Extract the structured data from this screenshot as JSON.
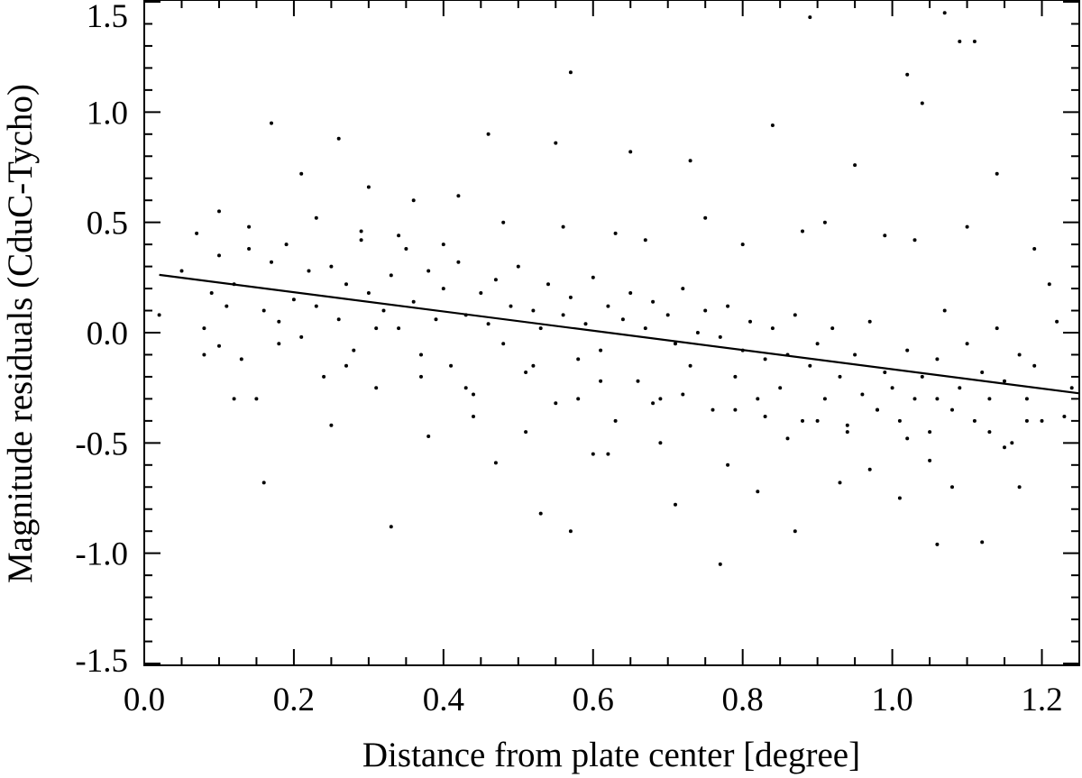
{
  "chart_data": {
    "type": "scatter",
    "title": "",
    "xlabel": "Distance from plate center [degree]",
    "ylabel": "Magnitude residuals (CduC-Tycho)",
    "xlim": [
      0.0,
      1.25
    ],
    "ylim": [
      -1.5,
      1.5
    ],
    "xticks": [
      "0.0",
      "0.2",
      "0.4",
      "0.6",
      "0.8",
      "1.0",
      "1.2"
    ],
    "yticks": [
      "1.5",
      "1.0",
      "0.5",
      "0.0",
      "-0.5",
      "-1.0",
      "-1.5"
    ],
    "grid": false,
    "legend": "none",
    "colors": {
      "points": "#000000",
      "fit_line": "#000000"
    },
    "series": [
      {
        "kind": "points",
        "x": [
          0.02,
          0.05,
          0.07,
          0.08,
          0.09,
          0.1,
          0.1,
          0.11,
          0.12,
          0.13,
          0.14,
          0.15,
          0.16,
          0.17,
          0.18,
          0.19,
          0.2,
          0.21,
          0.22,
          0.23,
          0.24,
          0.25,
          0.26,
          0.27,
          0.28,
          0.29,
          0.3,
          0.31,
          0.32,
          0.33,
          0.34,
          0.35,
          0.36,
          0.37,
          0.38,
          0.39,
          0.4,
          0.41,
          0.42,
          0.43,
          0.44,
          0.45,
          0.46,
          0.47,
          0.48,
          0.49,
          0.5,
          0.51,
          0.52,
          0.53,
          0.54,
          0.55,
          0.56,
          0.57,
          0.58,
          0.59,
          0.6,
          0.61,
          0.62,
          0.63,
          0.64,
          0.65,
          0.66,
          0.67,
          0.68,
          0.69,
          0.7,
          0.71,
          0.72,
          0.73,
          0.74,
          0.75,
          0.76,
          0.77,
          0.78,
          0.79,
          0.8,
          0.81,
          0.82,
          0.83,
          0.84,
          0.85,
          0.86,
          0.87,
          0.88,
          0.89,
          0.9,
          0.91,
          0.92,
          0.93,
          0.94,
          0.95,
          0.96,
          0.97,
          0.98,
          0.99,
          1.0,
          1.01,
          1.02,
          1.03,
          1.04,
          1.05,
          1.06,
          1.07,
          1.08,
          1.09,
          1.1,
          1.11,
          1.12,
          1.13,
          1.14,
          1.15,
          1.16,
          1.17,
          1.18,
          1.19,
          1.2,
          1.22,
          1.24,
          0.1,
          0.17,
          0.16,
          0.33,
          0.47,
          0.57,
          0.57,
          0.77,
          0.87,
          0.89,
          1.02,
          1.07,
          1.09,
          1.11,
          1.06,
          1.12,
          0.3,
          0.26,
          0.21,
          0.36,
          0.42,
          0.46,
          0.55,
          0.65,
          0.73,
          0.84,
          0.95,
          1.04,
          1.14,
          0.53,
          0.62,
          0.71,
          0.82,
          0.93,
          1.01,
          1.08,
          1.17,
          0.12,
          0.25,
          0.38,
          0.44,
          0.51,
          0.6,
          0.69,
          0.78,
          0.86,
          0.97,
          1.05,
          1.15,
          0.14,
          0.23,
          0.29,
          0.34,
          0.4,
          0.48,
          0.56,
          0.63,
          0.67,
          0.75,
          0.8,
          0.88,
          0.91,
          0.99,
          1.03,
          1.1,
          1.19,
          1.21,
          0.08,
          0.18,
          0.27,
          0.31,
          0.37,
          0.43,
          0.52,
          0.58,
          0.61,
          0.68,
          0.72,
          0.79,
          0.83,
          0.9,
          0.94,
          0.98,
          1.02,
          1.06,
          1.13,
          1.18,
          1.23
        ],
        "y": [
          0.08,
          0.28,
          0.45,
          0.02,
          0.18,
          0.35,
          -0.06,
          0.12,
          0.22,
          -0.12,
          0.38,
          -0.3,
          0.1,
          0.32,
          0.05,
          0.4,
          0.15,
          -0.02,
          0.28,
          0.12,
          -0.2,
          0.3,
          0.06,
          0.22,
          -0.08,
          0.42,
          0.18,
          -0.25,
          0.1,
          0.26,
          0.02,
          0.38,
          0.14,
          -0.1,
          0.28,
          0.06,
          0.2,
          -0.15,
          0.32,
          0.08,
          -0.28,
          0.18,
          0.04,
          0.24,
          -0.05,
          0.12,
          0.3,
          -0.18,
          0.1,
          0.02,
          0.22,
          -0.32,
          0.08,
          0.16,
          -0.12,
          0.04,
          0.25,
          -0.08,
          0.12,
          -0.4,
          0.06,
          0.18,
          -0.22,
          0.02,
          0.14,
          -0.3,
          0.08,
          -0.05,
          0.2,
          -0.15,
          0.0,
          0.1,
          -0.35,
          -0.02,
          0.12,
          -0.2,
          -0.08,
          0.05,
          -0.3,
          -0.12,
          0.02,
          -0.25,
          -0.1,
          0.08,
          -0.4,
          -0.15,
          -0.05,
          -0.3,
          0.02,
          -0.2,
          -0.45,
          -0.1,
          -0.28,
          0.05,
          -0.35,
          -0.18,
          -0.25,
          -0.4,
          -0.08,
          -0.3,
          -0.2,
          -0.45,
          -0.12,
          0.1,
          -0.35,
          -0.25,
          -0.05,
          -0.4,
          -0.18,
          -0.3,
          0.02,
          -0.22,
          -0.5,
          -0.1,
          -0.3,
          -0.15,
          -0.4,
          0.05,
          -0.25,
          0.55,
          0.95,
          -0.68,
          -0.88,
          -0.59,
          1.18,
          -0.9,
          -1.05,
          -0.9,
          1.43,
          1.17,
          1.45,
          1.32,
          1.32,
          -0.96,
          -0.95,
          0.66,
          0.88,
          0.72,
          0.6,
          0.62,
          0.9,
          0.86,
          0.82,
          0.78,
          0.94,
          0.76,
          1.04,
          0.72,
          -0.82,
          -0.55,
          -0.78,
          -0.72,
          -0.68,
          -0.75,
          -0.7,
          -0.7,
          -0.3,
          -0.42,
          -0.47,
          -0.38,
          -0.45,
          -0.55,
          -0.5,
          -0.6,
          -0.48,
          -0.62,
          -0.58,
          -0.52,
          0.48,
          0.52,
          0.46,
          0.44,
          0.4,
          0.5,
          0.48,
          0.45,
          0.42,
          0.52,
          0.4,
          0.46,
          0.5,
          0.44,
          0.42,
          0.48,
          0.38,
          0.22,
          -0.1,
          -0.05,
          -0.15,
          0.02,
          -0.2,
          -0.25,
          -0.15,
          -0.3,
          -0.22,
          -0.32,
          -0.28,
          -0.35,
          -0.38,
          -0.4,
          -0.42,
          -0.35,
          -0.48,
          -0.3,
          -0.45,
          -0.4,
          -0.38
        ]
      },
      {
        "kind": "fit_line",
        "x": [
          0.02,
          1.25
        ],
        "y": [
          0.262,
          -0.275
        ]
      }
    ]
  }
}
